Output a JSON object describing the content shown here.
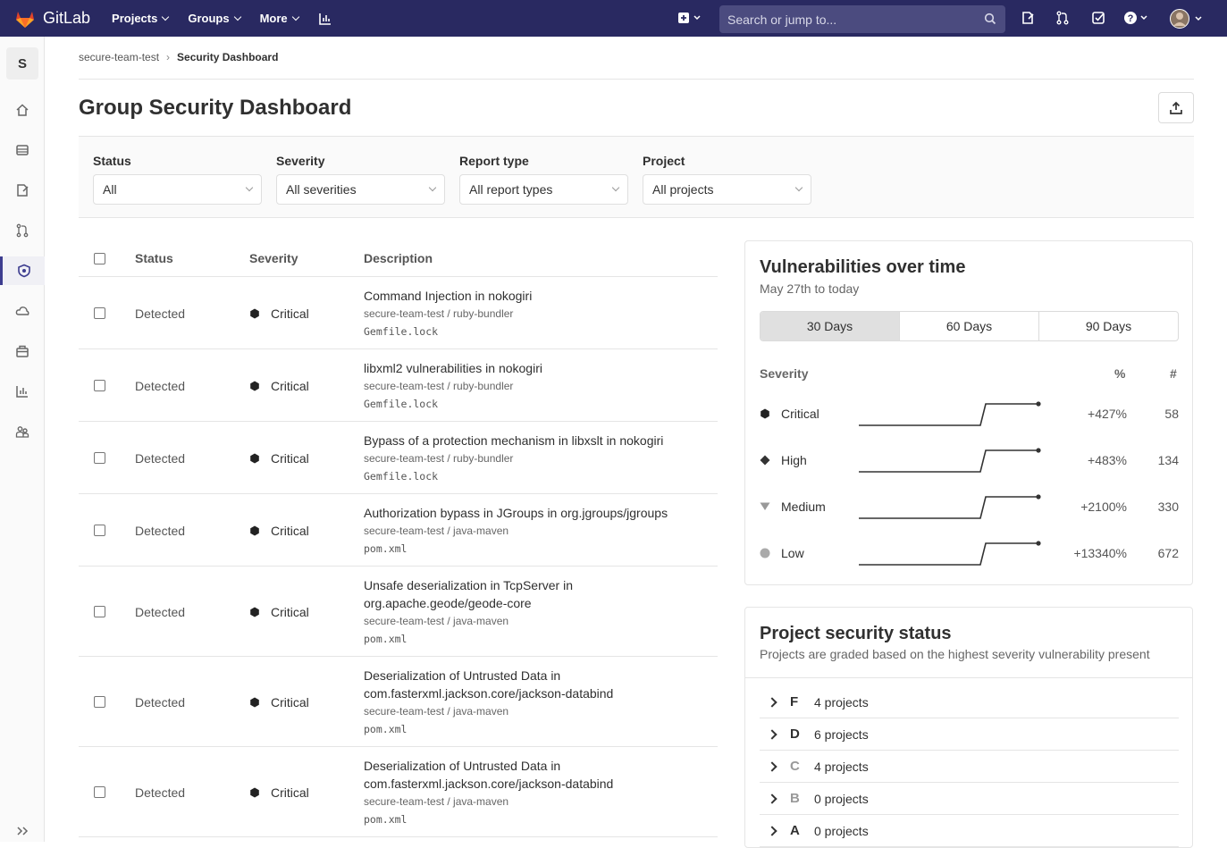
{
  "app": {
    "name": "GitLab"
  },
  "nav": {
    "links": [
      "Projects",
      "Groups",
      "More"
    ],
    "search_placeholder": "Search or jump to..."
  },
  "sidebar": {
    "avatar_letter": "S"
  },
  "breadcrumb": {
    "parent": "secure-team-test",
    "current": "Security Dashboard"
  },
  "page": {
    "title": "Group Security Dashboard"
  },
  "filters": [
    {
      "label": "Status",
      "value": "All"
    },
    {
      "label": "Severity",
      "value": "All severities"
    },
    {
      "label": "Report type",
      "value": "All report types"
    },
    {
      "label": "Project",
      "value": "All projects"
    }
  ],
  "table": {
    "headers": {
      "status": "Status",
      "severity": "Severity",
      "description": "Description"
    },
    "rows": [
      {
        "status": "Detected",
        "severity": "Critical",
        "title": "Command Injection in nokogiri",
        "project": "secure-team-test / ruby-bundler",
        "file": "Gemfile.lock"
      },
      {
        "status": "Detected",
        "severity": "Critical",
        "title": "libxml2 vulnerabilities in nokogiri",
        "project": "secure-team-test / ruby-bundler",
        "file": "Gemfile.lock"
      },
      {
        "status": "Detected",
        "severity": "Critical",
        "title": "Bypass of a protection mechanism in libxslt in nokogiri",
        "project": "secure-team-test / ruby-bundler",
        "file": "Gemfile.lock"
      },
      {
        "status": "Detected",
        "severity": "Critical",
        "title": "Authorization bypass in JGroups in org.jgroups/jgroups",
        "project": "secure-team-test / java-maven",
        "file": "pom.xml"
      },
      {
        "status": "Detected",
        "severity": "Critical",
        "title": "Unsafe deserialization in TcpServer in org.apache.geode/geode-core",
        "project": "secure-team-test / java-maven",
        "file": "pom.xml"
      },
      {
        "status": "Detected",
        "severity": "Critical",
        "title": "Deserialization of Untrusted Data in com.fasterxml.jackson.core/jackson-databind",
        "project": "secure-team-test / java-maven",
        "file": "pom.xml"
      },
      {
        "status": "Detected",
        "severity": "Critical",
        "title": "Deserialization of Untrusted Data in com.fasterxml.jackson.core/jackson-databind",
        "project": "secure-team-test / java-maven",
        "file": "pom.xml"
      }
    ]
  },
  "vuln_over_time": {
    "title": "Vulnerabilities over time",
    "subtitle": "May 27th to today",
    "ranges": [
      "30 Days",
      "60 Days",
      "90 Days"
    ],
    "selected_range": "30 Days",
    "headers": {
      "severity": "Severity",
      "pct": "%",
      "count": "#"
    },
    "rows": [
      {
        "severity": "Critical",
        "pct": "+427%",
        "count": "58"
      },
      {
        "severity": "High",
        "pct": "+483%",
        "count": "134"
      },
      {
        "severity": "Medium",
        "pct": "+2100%",
        "count": "330"
      },
      {
        "severity": "Low",
        "pct": "+13340%",
        "count": "672"
      }
    ]
  },
  "project_status": {
    "title": "Project security status",
    "subtitle": "Projects are graded based on the highest severity vulnerability present",
    "grades": [
      {
        "grade": "F",
        "count": "4 projects",
        "color": "#303030"
      },
      {
        "grade": "D",
        "count": "6 projects",
        "color": "#303030"
      },
      {
        "grade": "C",
        "count": "4 projects",
        "color": "#999999"
      },
      {
        "grade": "B",
        "count": "0 projects",
        "color": "#999999"
      },
      {
        "grade": "A",
        "count": "0 projects",
        "color": "#303030"
      }
    ]
  }
}
